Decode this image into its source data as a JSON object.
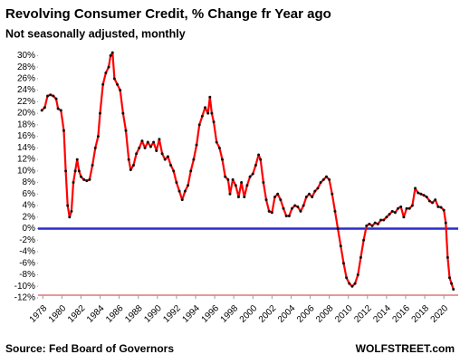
{
  "chart_data": {
    "type": "line",
    "title": "Revolving Consumer Credit, % Change fr Year ago",
    "subtitle": "Not seasonally adjusted, monthly",
    "source": "Source: Fed Board of Governors",
    "brand": "WOLFSTREET.com",
    "xlim": [
      1977.5,
      2021.5
    ],
    "ylim": [
      -12,
      31
    ],
    "xticks": [
      1978,
      1980,
      1982,
      1984,
      1986,
      1988,
      1990,
      1992,
      1994,
      1996,
      1998,
      2000,
      2002,
      2004,
      2006,
      2008,
      2010,
      2012,
      2014,
      2016,
      2018,
      2020
    ],
    "yticks": [
      {
        "value": -12,
        "label": "-12%"
      },
      {
        "value": -10,
        "label": "-10%"
      },
      {
        "value": -8,
        "label": "-8%"
      },
      {
        "value": -6,
        "label": "-6%"
      },
      {
        "value": -4,
        "label": "-4%"
      },
      {
        "value": -2,
        "label": "-2%"
      },
      {
        "value": 0,
        "label": "0%"
      },
      {
        "value": 2,
        "label": "2%"
      },
      {
        "value": 4,
        "label": "4%"
      },
      {
        "value": 6,
        "label": "6%"
      },
      {
        "value": 8,
        "label": "8%"
      },
      {
        "value": 10,
        "label": "10%"
      },
      {
        "value": 12,
        "label": "12%"
      },
      {
        "value": 14,
        "label": "14%"
      },
      {
        "value": 16,
        "label": "16%"
      },
      {
        "value": 18,
        "label": "18%"
      },
      {
        "value": 20,
        "label": "20%"
      },
      {
        "value": 22,
        "label": "22%"
      },
      {
        "value": 24,
        "label": "24%"
      },
      {
        "value": 26,
        "label": "26%"
      },
      {
        "value": 28,
        "label": "28%"
      },
      {
        "value": 30,
        "label": "30%"
      }
    ],
    "grid": false,
    "line_color": "#ff0000",
    "marker_color": "#111111",
    "reference_line": {
      "value": 0,
      "color": "#2b2bcc"
    },
    "axis_color": "#cc3333",
    "x": [
      1977.9,
      1978.2,
      1978.5,
      1978.8,
      1979.1,
      1979.4,
      1979.6,
      1979.9,
      1980.2,
      1980.4,
      1980.6,
      1980.8,
      1981.0,
      1981.2,
      1981.4,
      1981.6,
      1981.8,
      1982.0,
      1982.3,
      1982.6,
      1982.9,
      1983.2,
      1983.5,
      1983.8,
      1984.0,
      1984.3,
      1984.6,
      1984.9,
      1985.1,
      1985.3,
      1985.5,
      1985.8,
      1986.1,
      1986.4,
      1986.7,
      1987.0,
      1987.2,
      1987.5,
      1987.8,
      1988.1,
      1988.4,
      1988.7,
      1989.0,
      1989.3,
      1989.6,
      1989.9,
      1990.2,
      1990.5,
      1990.8,
      1991.1,
      1991.4,
      1991.7,
      1992.0,
      1992.3,
      1992.6,
      1992.9,
      1993.2,
      1993.5,
      1993.8,
      1994.1,
      1994.4,
      1994.7,
      1995.0,
      1995.3,
      1995.5,
      1995.7,
      1995.9,
      1996.2,
      1996.5,
      1996.8,
      1997.1,
      1997.4,
      1997.6,
      1997.9,
      1998.2,
      1998.5,
      1998.8,
      1999.1,
      1999.4,
      1999.7,
      2000.0,
      2000.3,
      2000.6,
      2000.8,
      2001.1,
      2001.4,
      2001.7,
      2002.0,
      2002.3,
      2002.6,
      2002.9,
      2003.2,
      2003.5,
      2003.8,
      2004.1,
      2004.4,
      2004.7,
      2005.0,
      2005.3,
      2005.6,
      2005.9,
      2006.2,
      2006.5,
      2006.8,
      2007.1,
      2007.4,
      2007.7,
      2008.0,
      2008.3,
      2008.6,
      2008.9,
      2009.2,
      2009.5,
      2009.8,
      2010.1,
      2010.4,
      2010.7,
      2011.0,
      2011.3,
      2011.6,
      2011.9,
      2012.2,
      2012.5,
      2012.8,
      2013.1,
      2013.4,
      2013.7,
      2014.0,
      2014.3,
      2014.6,
      2014.9,
      2015.2,
      2015.5,
      2015.8,
      2016.1,
      2016.4,
      2016.7,
      2017.0,
      2017.3,
      2017.6,
      2017.9,
      2018.2,
      2018.5,
      2018.8,
      2019.1,
      2019.4,
      2019.7,
      2020.0,
      2020.2,
      2020.4,
      2020.6,
      2020.8,
      2021.0
    ],
    "values": [
      20.5,
      21,
      23,
      23.2,
      23,
      22.5,
      20.8,
      20.5,
      17,
      10,
      4,
      2,
      3,
      8,
      10,
      12,
      10,
      9,
      8.5,
      8.3,
      8.5,
      11,
      14,
      16,
      20,
      25,
      27,
      28,
      30,
      30.5,
      26,
      25,
      24,
      20,
      17,
      12,
      10.2,
      11,
      13,
      14,
      15.2,
      14,
      15,
      14.2,
      15,
      13.5,
      15.5,
      13,
      12,
      12.5,
      11,
      10,
      8,
      6.5,
      5,
      6.5,
      7.5,
      10,
      12,
      14.5,
      18,
      19.5,
      21,
      20,
      22.8,
      20,
      18.5,
      15,
      14,
      12,
      9,
      8.5,
      6,
      8.5,
      7.5,
      5.5,
      8,
      5.5,
      7.5,
      9,
      9.5,
      11,
      12.8,
      12,
      8,
      5,
      3,
      2.8,
      5.5,
      6,
      5,
      3.5,
      2.2,
      2.2,
      3.5,
      4,
      3.8,
      3,
      4,
      5.5,
      6,
      5.5,
      6.5,
      7,
      8,
      8.5,
      9,
      8.5,
      6,
      3,
      0,
      -3,
      -6,
      -8.5,
      -9.5,
      -10,
      -9.5,
      -8,
      -5,
      -2,
      0.5,
      0.8,
      0.5,
      1,
      0.8,
      1.5,
      1.5,
      2,
      2.5,
      3,
      2.8,
      3.5,
      3.8,
      2,
      3.5,
      3.5,
      4,
      7,
      6.2,
      6,
      5.8,
      5.5,
      4.8,
      4.5,
      5,
      3.8,
      3.7,
      3.2,
      1,
      -5,
      -8.5,
      -9.5,
      -10.5
    ]
  }
}
